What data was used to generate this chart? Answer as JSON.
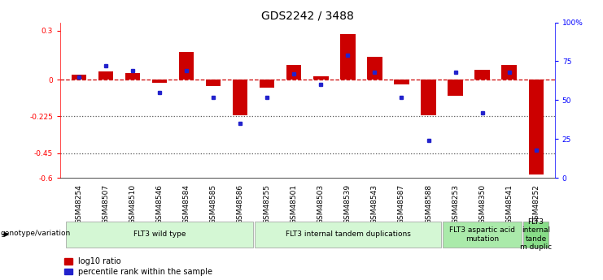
{
  "title": "GDS2242 / 3488",
  "samples": [
    "GSM48254",
    "GSM48507",
    "GSM48510",
    "GSM48546",
    "GSM48584",
    "GSM48585",
    "GSM48586",
    "GSM48255",
    "GSM48501",
    "GSM48503",
    "GSM48539",
    "GSM48543",
    "GSM48587",
    "GSM48588",
    "GSM48253",
    "GSM48350",
    "GSM48541",
    "GSM48252"
  ],
  "log10_ratio": [
    0.03,
    0.05,
    0.04,
    -0.02,
    0.17,
    -0.04,
    -0.22,
    -0.05,
    0.09,
    0.02,
    0.28,
    0.14,
    -0.03,
    -0.22,
    -0.1,
    0.06,
    0.09,
    -0.58
  ],
  "percentile_rank": [
    65,
    72,
    69,
    55,
    69,
    52,
    35,
    52,
    67,
    60,
    79,
    68,
    52,
    24,
    68,
    42,
    68,
    18
  ],
  "groups": [
    {
      "label": "FLT3 wild type",
      "start": 0,
      "end": 6,
      "color": "#d4f7d4"
    },
    {
      "label": "FLT3 internal tandem duplications",
      "start": 7,
      "end": 13,
      "color": "#d4f7d4"
    },
    {
      "label": "FLT3 aspartic acid\nmutation",
      "start": 14,
      "end": 16,
      "color": "#aaeaaa"
    },
    {
      "label": "FLT3\ninternal\ntande\nm duplic",
      "start": 17,
      "end": 17,
      "color": "#88dd88"
    }
  ],
  "ylim_left": [
    -0.6,
    0.35
  ],
  "ylim_right": [
    0,
    100
  ],
  "yticks_left": [
    -0.6,
    -0.45,
    -0.225,
    0.0,
    0.3
  ],
  "ytick_labels_left": [
    "-0.6",
    "-0.45",
    "-0.225",
    "0",
    "0.3"
  ],
  "yticks_right": [
    0,
    25,
    50,
    75,
    100
  ],
  "ytick_labels_right": [
    "0",
    "25",
    "50",
    "75",
    "100%"
  ],
  "bar_color": "#cc0000",
  "dot_color": "#2222cc",
  "hline_color": "#cc0000",
  "dotted_line_color": "#555555",
  "bg_color": "#ffffff",
  "title_fontsize": 10,
  "tick_fontsize": 6.5,
  "group_label_fontsize": 6.5
}
